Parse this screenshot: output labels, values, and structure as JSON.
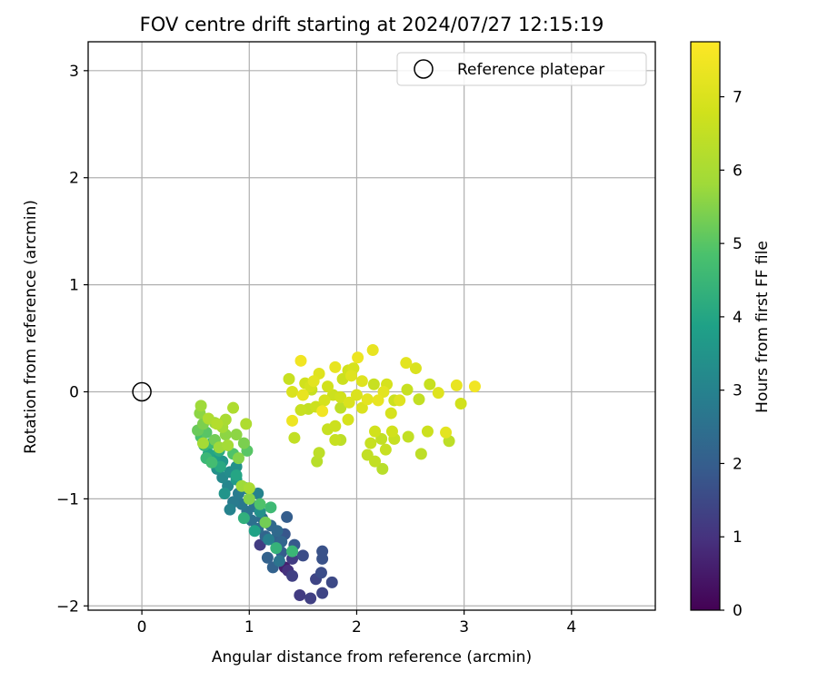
{
  "chart_data": {
    "type": "scatter",
    "title": "FOV centre drift starting at 2024/07/27 12:15:19",
    "xlabel": "Angular distance from reference (arcmin)",
    "ylabel": "Rotation from reference (arcmin)",
    "xlim": [
      -0.5,
      4.78
    ],
    "ylim": [
      -2.04,
      3.27
    ],
    "xticks": [
      "0",
      "1",
      "2",
      "3",
      "4"
    ],
    "xtick_values": [
      0,
      1,
      2,
      3,
      4
    ],
    "yticks": [
      "3",
      "2",
      "1",
      "0",
      "−1",
      "−2"
    ],
    "ytick_values": [
      3,
      2,
      1,
      0,
      -1,
      -2
    ],
    "grid": true,
    "legend": {
      "position": "top-right",
      "entries": [
        "Reference platepar"
      ]
    },
    "reference_point": {
      "x": 0,
      "y": 0,
      "label": "Reference platepar"
    },
    "colorbar": {
      "label": "Hours from first FF file",
      "range": [
        0,
        7.75
      ],
      "ticks": [
        "0",
        "1",
        "2",
        "3",
        "4",
        "5",
        "6",
        "7"
      ],
      "tick_values": [
        0,
        1,
        2,
        3,
        4,
        5,
        6,
        7
      ],
      "colormap": "viridis"
    },
    "points": [
      {
        "x": 1.47,
        "y": -1.9,
        "t": 1.2
      },
      {
        "x": 1.57,
        "y": -1.93,
        "t": 1.3
      },
      {
        "x": 1.68,
        "y": -1.88,
        "t": 1.4
      },
      {
        "x": 1.77,
        "y": -1.78,
        "t": 1.5
      },
      {
        "x": 1.62,
        "y": -1.75,
        "t": 1.4
      },
      {
        "x": 1.67,
        "y": -1.69,
        "t": 1.6
      },
      {
        "x": 1.68,
        "y": -1.56,
        "t": 1.7
      },
      {
        "x": 1.68,
        "y": -1.49,
        "t": 1.7
      },
      {
        "x": 1.5,
        "y": -1.53,
        "t": 1.6
      },
      {
        "x": 1.4,
        "y": -1.72,
        "t": 1.3
      },
      {
        "x": 1.36,
        "y": -1.67,
        "t": 1.0
      },
      {
        "x": 1.33,
        "y": -1.64,
        "t": 0.6
      },
      {
        "x": 1.4,
        "y": -1.56,
        "t": 1.2
      },
      {
        "x": 1.42,
        "y": -1.43,
        "t": 1.9
      },
      {
        "x": 1.33,
        "y": -1.33,
        "t": 1.8
      },
      {
        "x": 1.35,
        "y": -1.17,
        "t": 2.0
      },
      {
        "x": 1.22,
        "y": -1.64,
        "t": 2.1
      },
      {
        "x": 1.17,
        "y": -1.55,
        "t": 2.1
      },
      {
        "x": 1.1,
        "y": -1.43,
        "t": 1.2
      },
      {
        "x": 1.3,
        "y": -1.5,
        "t": 2.0
      },
      {
        "x": 1.23,
        "y": -1.38,
        "t": 2.1
      },
      {
        "x": 1.3,
        "y": -1.4,
        "t": 2.2
      },
      {
        "x": 1.26,
        "y": -1.3,
        "t": 2.3
      },
      {
        "x": 1.15,
        "y": -1.35,
        "t": 2.2
      },
      {
        "x": 1.2,
        "y": -1.25,
        "t": 2.3
      },
      {
        "x": 1.08,
        "y": -1.28,
        "t": 2.4
      },
      {
        "x": 1.02,
        "y": -1.2,
        "t": 2.5
      },
      {
        "x": 1.12,
        "y": -1.18,
        "t": 2.4
      },
      {
        "x": 0.98,
        "y": -1.12,
        "t": 2.6
      },
      {
        "x": 1.05,
        "y": -1.07,
        "t": 2.6
      },
      {
        "x": 0.93,
        "y": -1.05,
        "t": 2.7
      },
      {
        "x": 0.85,
        "y": -1.03,
        "t": 2.8
      },
      {
        "x": 0.9,
        "y": -0.95,
        "t": 2.8
      },
      {
        "x": 0.97,
        "y": -0.9,
        "t": 2.9
      },
      {
        "x": 1.08,
        "y": -0.95,
        "t": 3.0
      },
      {
        "x": 0.8,
        "y": -0.88,
        "t": 3.1
      },
      {
        "x": 0.75,
        "y": -0.8,
        "t": 3.2
      },
      {
        "x": 0.82,
        "y": -0.75,
        "t": 3.3
      },
      {
        "x": 0.88,
        "y": -0.7,
        "t": 3.4
      },
      {
        "x": 0.7,
        "y": -0.72,
        "t": 3.4
      },
      {
        "x": 0.75,
        "y": -0.65,
        "t": 3.6
      },
      {
        "x": 0.68,
        "y": -0.6,
        "t": 3.8
      },
      {
        "x": 0.62,
        "y": -0.58,
        "t": 4.0
      },
      {
        "x": 0.72,
        "y": -0.55,
        "t": 4.2
      },
      {
        "x": 0.58,
        "y": -0.5,
        "t": 4.4
      },
      {
        "x": 0.65,
        "y": -0.48,
        "t": 4.6
      },
      {
        "x": 0.55,
        "y": -0.42,
        "t": 4.8
      },
      {
        "x": 0.6,
        "y": -0.38,
        "t": 5.0
      },
      {
        "x": 0.52,
        "y": -0.36,
        "t": 5.2
      },
      {
        "x": 0.57,
        "y": -0.3,
        "t": 5.4
      },
      {
        "x": 0.54,
        "y": -0.2,
        "t": 5.6
      },
      {
        "x": 0.55,
        "y": -0.13,
        "t": 5.8
      },
      {
        "x": 0.68,
        "y": -0.29,
        "t": 5.7
      },
      {
        "x": 0.75,
        "y": -0.33,
        "t": 5.9
      },
      {
        "x": 0.78,
        "y": -0.26,
        "t": 6.0
      },
      {
        "x": 0.85,
        "y": -0.15,
        "t": 6.1
      },
      {
        "x": 0.97,
        "y": -0.3,
        "t": 6.1
      },
      {
        "x": 0.88,
        "y": -0.4,
        "t": 5.6
      },
      {
        "x": 0.95,
        "y": -0.48,
        "t": 5.4
      },
      {
        "x": 0.98,
        "y": -0.55,
        "t": 5.0
      },
      {
        "x": 0.85,
        "y": -0.58,
        "t": 4.9
      },
      {
        "x": 0.8,
        "y": -0.5,
        "t": 5.9
      },
      {
        "x": 0.9,
        "y": -0.62,
        "t": 5.5
      },
      {
        "x": 0.65,
        "y": -0.66,
        "t": 4.7
      },
      {
        "x": 0.72,
        "y": -0.52,
        "t": 5.8
      },
      {
        "x": 0.6,
        "y": -0.62,
        "t": 4.5
      },
      {
        "x": 0.78,
        "y": -0.4,
        "t": 5.6
      },
      {
        "x": 0.68,
        "y": -0.45,
        "t": 5.3
      },
      {
        "x": 0.93,
        "y": -0.88,
        "t": 5.8
      },
      {
        "x": 1.0,
        "y": -1.0,
        "t": 5.5
      },
      {
        "x": 1.1,
        "y": -1.05,
        "t": 4.9
      },
      {
        "x": 1.15,
        "y": -1.22,
        "t": 5.3
      },
      {
        "x": 1.2,
        "y": -1.08,
        "t": 4.6
      },
      {
        "x": 0.95,
        "y": -1.18,
        "t": 4.3
      },
      {
        "x": 1.05,
        "y": -1.3,
        "t": 3.9
      },
      {
        "x": 1.25,
        "y": -1.46,
        "t": 4.4
      },
      {
        "x": 1.4,
        "y": -1.49,
        "t": 4.5
      },
      {
        "x": 0.88,
        "y": -0.78,
        "t": 4.0
      },
      {
        "x": 0.77,
        "y": -0.95,
        "t": 3.5
      },
      {
        "x": 0.82,
        "y": -1.1,
        "t": 3.0
      },
      {
        "x": 0.7,
        "y": -0.3,
        "t": 6.2
      },
      {
        "x": 0.62,
        "y": -0.25,
        "t": 6.1
      },
      {
        "x": 0.57,
        "y": -0.48,
        "t": 5.9
      },
      {
        "x": 1.0,
        "y": -0.9,
        "t": 6.0
      },
      {
        "x": 1.18,
        "y": -1.38,
        "t": 2.9
      },
      {
        "x": 1.28,
        "y": -1.58,
        "t": 2.6
      },
      {
        "x": 1.1,
        "y": -1.12,
        "t": 3.4
      },
      {
        "x": 0.88,
        "y": -0.82,
        "t": 3.7
      },
      {
        "x": 0.73,
        "y": -0.7,
        "t": 4.1
      },
      {
        "x": 1.37,
        "y": 0.12,
        "t": 6.6
      },
      {
        "x": 1.48,
        "y": 0.29,
        "t": 7.5
      },
      {
        "x": 1.6,
        "y": 0.1,
        "t": 7.2
      },
      {
        "x": 1.65,
        "y": 0.17,
        "t": 7.1
      },
      {
        "x": 1.8,
        "y": 0.23,
        "t": 7.3
      },
      {
        "x": 1.92,
        "y": 0.2,
        "t": 6.8
      },
      {
        "x": 1.97,
        "y": 0.22,
        "t": 6.9
      },
      {
        "x": 2.01,
        "y": 0.32,
        "t": 7.4
      },
      {
        "x": 2.15,
        "y": 0.39,
        "t": 7.3
      },
      {
        "x": 2.46,
        "y": 0.27,
        "t": 7.2
      },
      {
        "x": 2.55,
        "y": 0.22,
        "t": 7.0
      },
      {
        "x": 2.68,
        "y": 0.07,
        "t": 6.6
      },
      {
        "x": 2.76,
        "y": -0.01,
        "t": 7.1
      },
      {
        "x": 2.93,
        "y": 0.06,
        "t": 7.3
      },
      {
        "x": 3.1,
        "y": 0.05,
        "t": 7.5
      },
      {
        "x": 2.97,
        "y": -0.11,
        "t": 6.8
      },
      {
        "x": 2.58,
        "y": -0.07,
        "t": 6.5
      },
      {
        "x": 2.47,
        "y": 0.02,
        "t": 6.6
      },
      {
        "x": 2.35,
        "y": -0.08,
        "t": 6.7
      },
      {
        "x": 2.28,
        "y": 0.07,
        "t": 6.9
      },
      {
        "x": 2.16,
        "y": 0.07,
        "t": 6.6
      },
      {
        "x": 2.05,
        "y": 0.1,
        "t": 7.1
      },
      {
        "x": 2.0,
        "y": -0.03,
        "t": 7.0
      },
      {
        "x": 2.1,
        "y": -0.07,
        "t": 7.2
      },
      {
        "x": 2.2,
        "y": -0.08,
        "t": 7.3
      },
      {
        "x": 1.93,
        "y": -0.1,
        "t": 7.0
      },
      {
        "x": 1.85,
        "y": -0.05,
        "t": 6.8
      },
      {
        "x": 1.78,
        "y": -0.03,
        "t": 6.7
      },
      {
        "x": 1.7,
        "y": -0.08,
        "t": 6.9
      },
      {
        "x": 1.62,
        "y": -0.14,
        "t": 6.7
      },
      {
        "x": 1.55,
        "y": -0.16,
        "t": 6.5
      },
      {
        "x": 1.48,
        "y": -0.17,
        "t": 6.6
      },
      {
        "x": 1.4,
        "y": 0.0,
        "t": 7.0
      },
      {
        "x": 1.5,
        "y": -0.03,
        "t": 7.3
      },
      {
        "x": 1.57,
        "y": 0.05,
        "t": 6.9
      },
      {
        "x": 1.73,
        "y": 0.05,
        "t": 6.8
      },
      {
        "x": 1.87,
        "y": 0.12,
        "t": 6.7
      },
      {
        "x": 1.85,
        "y": -0.15,
        "t": 6.4
      },
      {
        "x": 1.68,
        "y": -0.18,
        "t": 7.5
      },
      {
        "x": 1.58,
        "y": 0.02,
        "t": 6.6
      },
      {
        "x": 1.4,
        "y": -0.27,
        "t": 7.4
      },
      {
        "x": 1.42,
        "y": -0.43,
        "t": 6.5
      },
      {
        "x": 1.65,
        "y": -0.57,
        "t": 6.4
      },
      {
        "x": 1.63,
        "y": -0.65,
        "t": 6.3
      },
      {
        "x": 1.8,
        "y": -0.32,
        "t": 6.7
      },
      {
        "x": 1.73,
        "y": -0.35,
        "t": 6.6
      },
      {
        "x": 1.8,
        "y": -0.45,
        "t": 6.6
      },
      {
        "x": 1.85,
        "y": -0.45,
        "t": 6.4
      },
      {
        "x": 1.92,
        "y": -0.26,
        "t": 6.9
      },
      {
        "x": 2.05,
        "y": -0.15,
        "t": 7.0
      },
      {
        "x": 2.17,
        "y": -0.37,
        "t": 6.8
      },
      {
        "x": 2.13,
        "y": -0.48,
        "t": 6.6
      },
      {
        "x": 2.1,
        "y": -0.59,
        "t": 6.5
      },
      {
        "x": 2.17,
        "y": -0.65,
        "t": 6.5
      },
      {
        "x": 2.24,
        "y": -0.72,
        "t": 6.3
      },
      {
        "x": 2.27,
        "y": -0.54,
        "t": 6.6
      },
      {
        "x": 2.23,
        "y": -0.44,
        "t": 6.5
      },
      {
        "x": 2.33,
        "y": -0.37,
        "t": 6.8
      },
      {
        "x": 2.35,
        "y": -0.44,
        "t": 6.6
      },
      {
        "x": 2.32,
        "y": -0.2,
        "t": 6.9
      },
      {
        "x": 2.4,
        "y": -0.08,
        "t": 7.1
      },
      {
        "x": 2.25,
        "y": 0.0,
        "t": 7.2
      },
      {
        "x": 2.48,
        "y": -0.42,
        "t": 6.5
      },
      {
        "x": 2.6,
        "y": -0.58,
        "t": 6.4
      },
      {
        "x": 2.66,
        "y": -0.37,
        "t": 6.7
      },
      {
        "x": 2.83,
        "y": -0.38,
        "t": 7.2
      },
      {
        "x": 2.86,
        "y": -0.46,
        "t": 6.4
      },
      {
        "x": 1.95,
        "y": 0.15,
        "t": 7.1
      },
      {
        "x": 1.52,
        "y": 0.08,
        "t": 6.8
      }
    ]
  }
}
